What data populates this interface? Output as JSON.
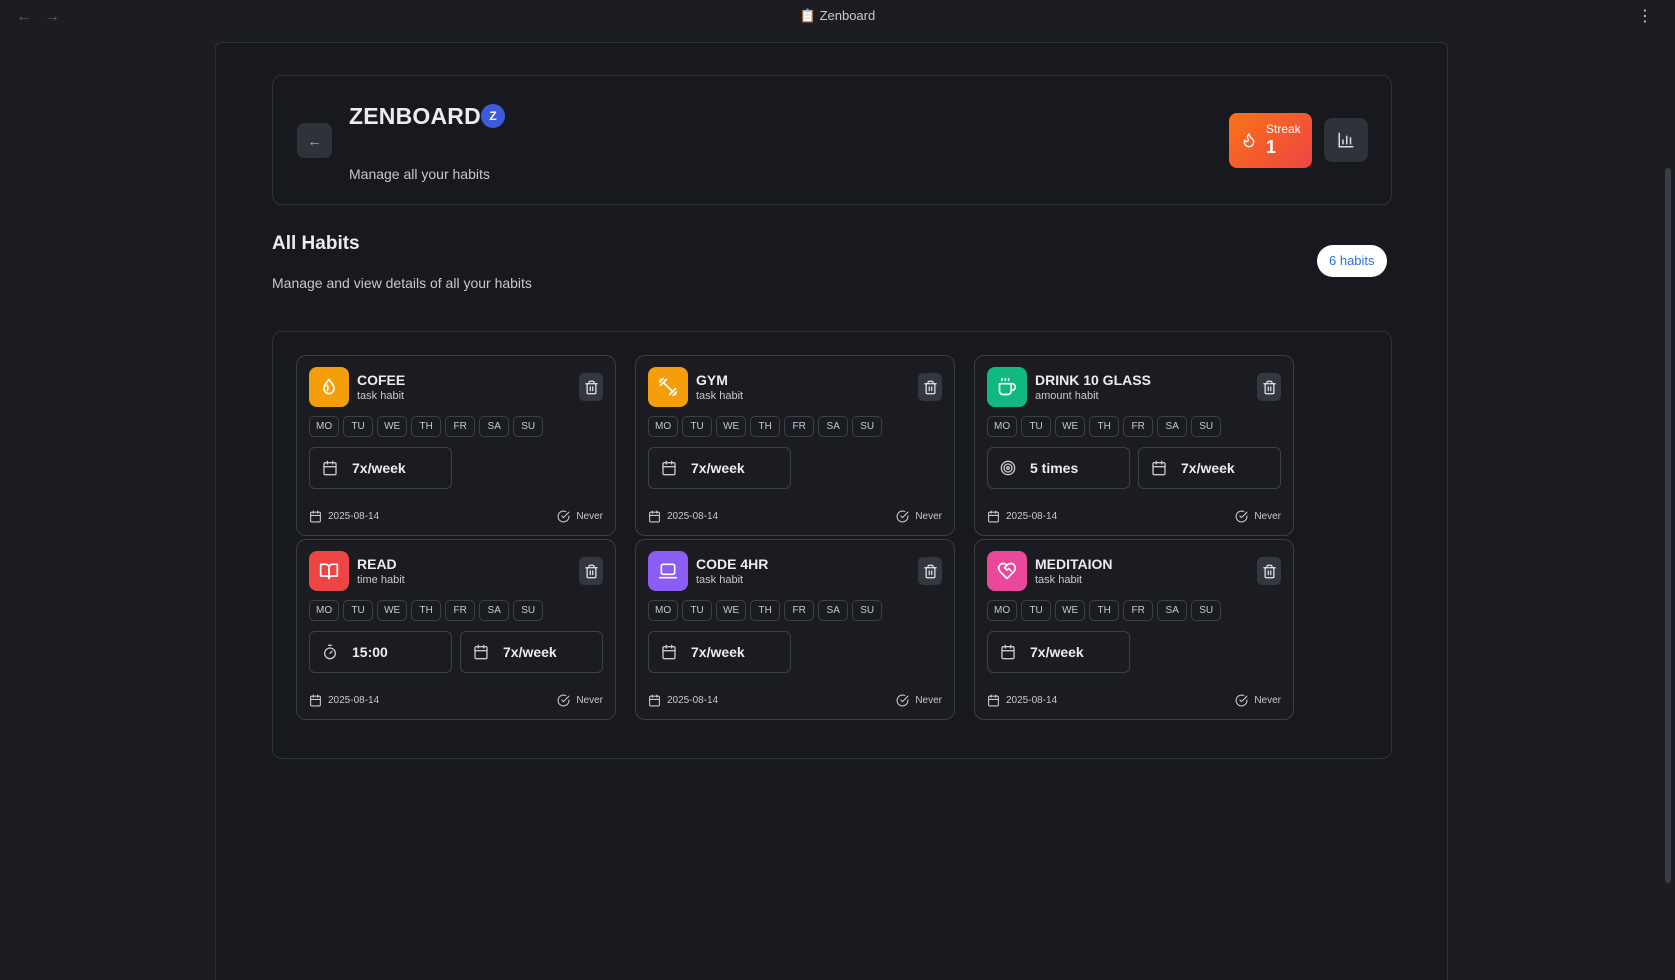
{
  "window": {
    "title": "📋 Zenboard"
  },
  "header": {
    "title": "ZENBOARD",
    "avatar_letter": "Z",
    "subtitle": "Manage all your habits",
    "streak_label": "Streak",
    "streak_value": "1"
  },
  "section": {
    "title": "All Habits",
    "subtitle": "Manage and view details of all your habits",
    "count_label": "6 habits"
  },
  "days": [
    "MO",
    "TU",
    "WE",
    "TH",
    "FR",
    "SA",
    "SU"
  ],
  "habits": [
    {
      "name": "COFEE",
      "type": "task habit",
      "icon": "coffee-bean-icon",
      "color": "#f59e0b",
      "stats": [
        {
          "icon": "calendar-icon",
          "value": "7x/week"
        }
      ],
      "date": "2025-08-14",
      "last_done": "Never"
    },
    {
      "name": "GYM",
      "type": "task habit",
      "icon": "dumbbell-icon",
      "color": "#f59e0b",
      "stats": [
        {
          "icon": "calendar-icon",
          "value": "7x/week"
        }
      ],
      "date": "2025-08-14",
      "last_done": "Never"
    },
    {
      "name": "DRINK 10 GLASS",
      "type": "amount habit",
      "icon": "cup-icon",
      "color": "#10b981",
      "stats": [
        {
          "icon": "target-icon",
          "value": "5 times"
        },
        {
          "icon": "calendar-icon",
          "value": "7x/week"
        }
      ],
      "date": "2025-08-14",
      "last_done": "Never"
    },
    {
      "name": "READ",
      "type": "time habit",
      "icon": "book-icon",
      "color": "#ef4444",
      "stats": [
        {
          "icon": "timer-icon",
          "value": "15:00"
        },
        {
          "icon": "calendar-icon",
          "value": "7x/week"
        }
      ],
      "date": "2025-08-14",
      "last_done": "Never"
    },
    {
      "name": "CODE 4HR",
      "type": "task habit",
      "icon": "laptop-icon",
      "color": "#8b5cf6",
      "stats": [
        {
          "icon": "calendar-icon",
          "value": "7x/week"
        }
      ],
      "date": "2025-08-14",
      "last_done": "Never"
    },
    {
      "name": "MEDITAION",
      "type": "task habit",
      "icon": "heart-hand-icon",
      "color": "#ec4899",
      "stats": [
        {
          "icon": "calendar-icon",
          "value": "7x/week"
        }
      ],
      "date": "2025-08-14",
      "last_done": "Never"
    }
  ]
}
